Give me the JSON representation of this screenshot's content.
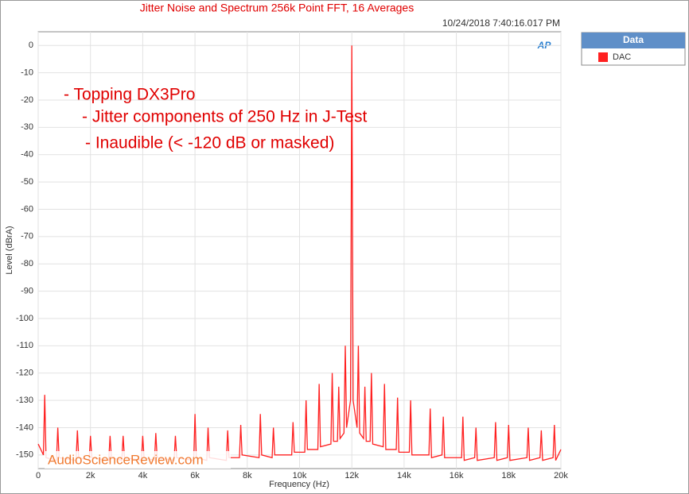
{
  "chart_data": {
    "type": "line",
    "title": "Jitter Noise and Spectrum 256k Point FFT, 16 Averages",
    "subtitle": "10/24/2018 7:40:16.017 PM",
    "x_label": "Frequency (Hz)",
    "y_label": "Level (dBrA)",
    "annotations": [
      "- Topping DX3Pro",
      "- Jitter components of 250 Hz in J-Test",
      "- Inaudible (< -120 dB or masked)"
    ],
    "watermark": "AudioScienceReview.com",
    "logo": "AP",
    "legend_title": "Data",
    "legend": "right",
    "grid": true,
    "xlim": [
      0,
      20000
    ],
    "ylim": [
      -155,
      5
    ],
    "xticks": [
      0,
      {
        "value": 2000,
        "label": "2k"
      },
      {
        "value": 4000,
        "label": "4k"
      },
      {
        "value": 6000,
        "label": "6k"
      },
      {
        "value": 8000,
        "label": "8k"
      },
      {
        "value": 10000,
        "label": "10k"
      },
      {
        "value": 12000,
        "label": "12k"
      },
      {
        "value": 14000,
        "label": "14k"
      },
      {
        "value": 16000,
        "label": "16k"
      },
      {
        "value": 18000,
        "label": "18k"
      },
      {
        "value": 20000,
        "label": "20k"
      }
    ],
    "yticks": [
      0,
      -10,
      -20,
      -30,
      -40,
      -50,
      -60,
      -70,
      -80,
      -90,
      -100,
      -110,
      -120,
      -130,
      -140,
      -150
    ],
    "x": [
      0,
      200,
      250,
      300,
      700,
      750,
      800,
      1450,
      1500,
      1550,
      1950,
      2000,
      2050,
      2700,
      2750,
      2800,
      3200,
      3250,
      3300,
      3950,
      4000,
      4050,
      4450,
      4500,
      4550,
      5200,
      5250,
      5300,
      5950,
      6000,
      6050,
      6450,
      6500,
      6550,
      7200,
      7250,
      7300,
      7700,
      7750,
      7800,
      8450,
      8500,
      8550,
      8950,
      9000,
      9050,
      9700,
      9750,
      9800,
      10200,
      10250,
      10300,
      10700,
      10750,
      10800,
      11200,
      11250,
      11300,
      11450,
      11500,
      11550,
      11700,
      11750,
      11800,
      11950,
      12000,
      12050,
      12200,
      12250,
      12300,
      12450,
      12500,
      12550,
      12700,
      12750,
      12800,
      13200,
      13250,
      13300,
      13700,
      13750,
      13800,
      14200,
      14250,
      14300,
      14950,
      15000,
      15050,
      15450,
      15500,
      15550,
      16200,
      16250,
      16300,
      16700,
      16750,
      16800,
      17450,
      17500,
      17550,
      17950,
      18000,
      18050,
      18700,
      18750,
      18800,
      19200,
      19250,
      19300,
      19700,
      19750,
      19800,
      20000
    ],
    "series": [
      {
        "name": "DAC",
        "color": "#ff2020",
        "values": [
          -146,
          -150,
          -128,
          -151,
          -152,
          -140,
          -151,
          -152,
          -141,
          -151,
          -152,
          -143,
          -151,
          -152,
          -143,
          -151,
          -152,
          -143,
          -151,
          -152,
          -143,
          -151,
          -152,
          -142,
          -151,
          -152,
          -143,
          -151,
          -152,
          -135,
          -151,
          -152,
          -140,
          -151,
          -152,
          -141,
          -151,
          -151,
          -139,
          -150,
          -151,
          -135,
          -150,
          -151,
          -140,
          -150,
          -150,
          -138,
          -149,
          -149,
          -130,
          -148,
          -148,
          -124,
          -147,
          -146,
          -120,
          -145,
          -145,
          -125,
          -144,
          -142,
          -110,
          -140,
          -130,
          0,
          -130,
          -140,
          -110,
          -142,
          -144,
          -125,
          -145,
          -145,
          -120,
          -146,
          -147,
          -124,
          -148,
          -148,
          -129,
          -149,
          -149,
          -130,
          -150,
          -150,
          -133,
          -151,
          -150,
          -136,
          -151,
          -151,
          -136,
          -152,
          -151,
          -140,
          -152,
          -151,
          -138,
          -152,
          -151,
          -139,
          -152,
          -151,
          -140,
          -152,
          -151,
          -141,
          -152,
          -151,
          -139,
          -152,
          -148
        ]
      }
    ]
  }
}
